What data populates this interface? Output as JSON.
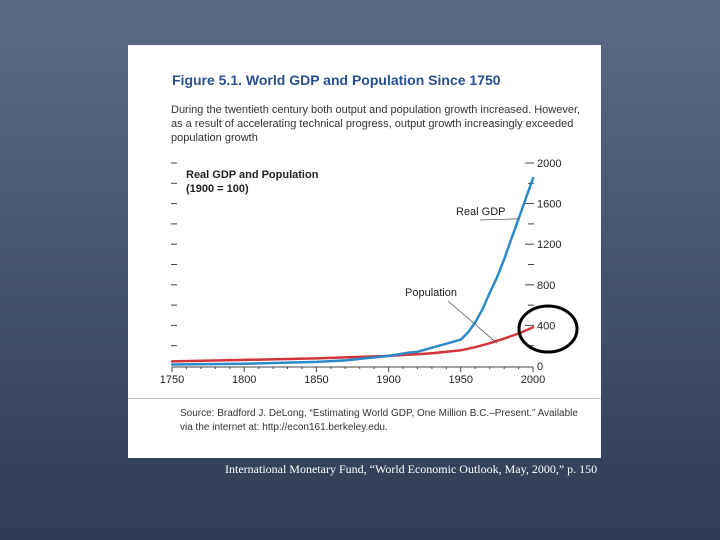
{
  "figure": {
    "title": "Figure 5.1.  World GDP and Population Since 1750",
    "subtitle": "During the twentieth century both output and population growth increased. However, as a result of accelerating technical progress, output growth increasingly exceeded population growth",
    "source": "Source: Bradford J. DeLong, “Estimating World GDP, One Million B.C.–Present.” Available via the internet at: http://econ161.berkeley.edu."
  },
  "caption": "International Monetary Fund, “World Economic Outlook, May, 2000,” p. 150",
  "chart_data": {
    "type": "line",
    "title": "Real GDP and Population",
    "subtitle": "(1900 = 100)",
    "xlabel": "",
    "ylabel": "",
    "xlim": [
      1750,
      2000
    ],
    "ylim": [
      0,
      2000
    ],
    "x_ticks": [
      1750,
      1800,
      1850,
      1900,
      1950,
      2000
    ],
    "y_ticks": [
      0,
      400,
      800,
      1200,
      1600,
      2000
    ],
    "y_tick_labels": [
      "0",
      "400",
      "800",
      "1200",
      "1600",
      "2000"
    ],
    "series": [
      {
        "name": "Real GDP",
        "color": "#2d8ac9",
        "x": [
          1750,
          1800,
          1850,
          1870,
          1900,
          1913,
          1920,
          1930,
          1940,
          1950,
          1955,
          1960,
          1965,
          1970,
          1975,
          1980,
          1985,
          1990,
          1995,
          2000
        ],
        "y": [
          15,
          22,
          40,
          55,
          100,
          130,
          140,
          180,
          220,
          260,
          330,
          430,
          560,
          720,
          870,
          1050,
          1250,
          1450,
          1650,
          1850
        ]
      },
      {
        "name": "Population",
        "color": "#d2343a",
        "x": [
          1750,
          1800,
          1850,
          1900,
          1913,
          1920,
          1930,
          1940,
          1950,
          1960,
          1970,
          1980,
          1990,
          2000
        ],
        "y": [
          45,
          60,
          75,
          100,
          110,
          115,
          125,
          140,
          155,
          185,
          225,
          270,
          320,
          380
        ]
      }
    ],
    "annotations": [
      {
        "text": "Real GDP",
        "target_series": "Real GDP"
      },
      {
        "text": "Population",
        "target_series": "Population"
      }
    ],
    "highlight": {
      "label": "400",
      "shape": "circle",
      "color": "#000000"
    }
  }
}
